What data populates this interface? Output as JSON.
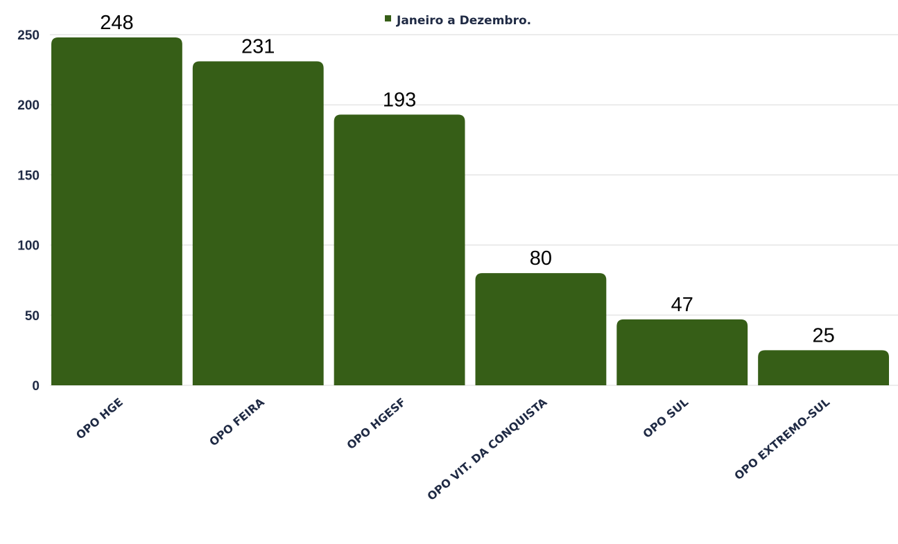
{
  "chart_data": {
    "type": "bar",
    "categories": [
      "OPO HGE",
      "OPO FEIRA",
      "OPO HGESF",
      "OPO VIT. DA CONQUISTA",
      "OPO SUL",
      "OPO EXTREMO-SUL"
    ],
    "series": [
      {
        "name": "Janeiro a Dezembro.",
        "values": [
          248,
          231,
          193,
          80,
          47,
          25
        ]
      }
    ],
    "ylim": [
      0,
      250
    ],
    "yticks": [
      "0",
      "50",
      "100",
      "150",
      "200",
      "250"
    ],
    "grid": true,
    "legend_position": "top-center",
    "bar_color": "#365e17"
  }
}
